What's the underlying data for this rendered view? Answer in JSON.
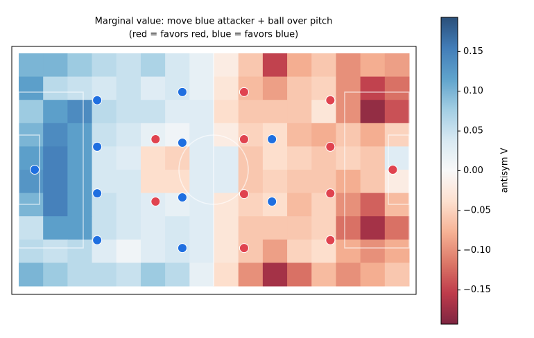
{
  "chart_data": {
    "type": "heatmap",
    "title": "Marginal value: move blue attacker + ball over pitch",
    "subtitle": "(red = favors red, blue = favors blue)",
    "xlim": [
      0,
      105
    ],
    "ylim": [
      0,
      68
    ],
    "colormap": "RdBu",
    "clim": [
      -0.193,
      0.193
    ],
    "opacity": 0.85,
    "z": [
      [
        0.1,
        0.1,
        0.08,
        0.06,
        0.05,
        0.07,
        0.04,
        0.02,
        -0.02,
        -0.06,
        -0.15,
        -0.08,
        -0.06,
        -0.1,
        -0.08,
        -0.09
      ],
      [
        0.12,
        0.06,
        0.05,
        0.04,
        0.05,
        0.03,
        0.04,
        0.02,
        -0.03,
        -0.07,
        -0.09,
        -0.06,
        -0.05,
        -0.1,
        -0.15,
        -0.12
      ],
      [
        0.08,
        0.12,
        0.14,
        0.06,
        0.05,
        0.05,
        0.03,
        0.03,
        -0.04,
        -0.06,
        -0.06,
        -0.06,
        -0.03,
        -0.1,
        -0.18,
        -0.14
      ],
      [
        0.1,
        0.14,
        0.12,
        0.05,
        0.04,
        0.02,
        0.01,
        0.03,
        -0.02,
        -0.05,
        -0.04,
        -0.07,
        -0.08,
        -0.06,
        -0.08,
        -0.05
      ],
      [
        0.12,
        0.15,
        0.12,
        0.04,
        0.03,
        -0.04,
        -0.05,
        0.03,
        0.03,
        -0.06,
        -0.04,
        -0.05,
        -0.06,
        -0.05,
        -0.06,
        0.03
      ],
      [
        0.13,
        0.15,
        0.12,
        0.04,
        0.04,
        -0.04,
        -0.04,
        0.03,
        0.03,
        -0.06,
        -0.05,
        -0.06,
        -0.06,
        -0.08,
        -0.06,
        -0.02
      ],
      [
        0.1,
        0.15,
        0.12,
        0.05,
        0.04,
        0.03,
        0.02,
        0.03,
        -0.03,
        -0.05,
        -0.04,
        -0.07,
        -0.05,
        -0.1,
        -0.13,
        -0.07
      ],
      [
        0.05,
        0.12,
        0.12,
        0.05,
        0.04,
        0.03,
        0.04,
        0.03,
        -0.03,
        -0.06,
        -0.06,
        -0.06,
        -0.05,
        -0.12,
        -0.17,
        -0.12
      ],
      [
        0.06,
        0.05,
        0.06,
        0.03,
        0.01,
        0.03,
        0.04,
        0.03,
        -0.03,
        -0.06,
        -0.09,
        -0.05,
        -0.04,
        -0.08,
        -0.1,
        -0.08
      ],
      [
        0.1,
        0.08,
        0.06,
        0.06,
        0.05,
        0.08,
        0.06,
        0.02,
        -0.04,
        -0.1,
        -0.17,
        -0.12,
        -0.07,
        -0.1,
        -0.08,
        -0.06
      ]
    ],
    "scatter": [
      {
        "color": "#1f6fe0",
        "x": [
          4.3,
          21.1,
          21.1,
          21.1,
          21.1,
          44.0,
          44.0,
          44.0,
          44.0,
          68.1,
          68.1
        ],
        "y": [
          34.0,
          54.3,
          40.7,
          27.1,
          13.4,
          56.7,
          41.9,
          25.9,
          11.1,
          42.9,
          24.7
        ]
      },
      {
        "color": "#e0434f",
        "x": [
          36.8,
          36.8,
          60.6,
          60.6,
          60.6,
          60.6,
          83.8,
          83.8,
          83.8,
          83.8,
          100.6
        ],
        "y": [
          42.9,
          24.7,
          56.7,
          42.9,
          26.9,
          11.1,
          54.3,
          40.7,
          27.1,
          13.4,
          34.0
        ]
      }
    ],
    "colorbar_label": "antisym V",
    "colorbar_ticks": [
      {
        "value": 0.15,
        "label": "0.15"
      },
      {
        "value": 0.1,
        "label": "0.10"
      },
      {
        "value": 0.05,
        "label": "0.05"
      },
      {
        "value": 0.0,
        "label": "0.00"
      },
      {
        "value": -0.05,
        "label": "−0.05"
      },
      {
        "value": -0.1,
        "label": "−0.10"
      },
      {
        "value": -0.15,
        "label": "−0.15"
      }
    ]
  }
}
